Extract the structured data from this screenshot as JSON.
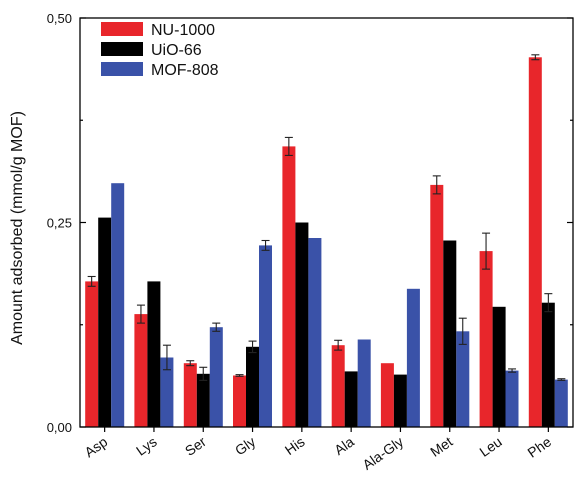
{
  "chart_data": {
    "type": "bar",
    "title": "",
    "xlabel": "",
    "ylabel": "Amount adsorbed (mmol/g MOF)",
    "ylim": [
      0,
      0.5
    ],
    "yticks": [
      0,
      0.25,
      0.5
    ],
    "ytick_labels": [
      "0,00",
      "0,25",
      "0,50"
    ],
    "legend_position": "top-left",
    "categories": [
      "Asp",
      "Lys",
      "Ser",
      "Gly",
      "His",
      "Ala",
      "Ala-Gly",
      "Met",
      "Leu",
      "Phe"
    ],
    "series": [
      {
        "name": "NU-1000",
        "color": "#e8262b",
        "values": [
          0.178,
          0.138,
          0.078,
          0.063,
          0.343,
          0.1,
          0.078,
          0.296,
          0.215,
          0.452
        ],
        "errors": [
          0.006,
          0.011,
          0.003,
          0.001,
          0.011,
          0.006,
          0.0,
          0.011,
          0.022,
          0.003
        ]
      },
      {
        "name": "UiO-66",
        "color": "#000000",
        "values": [
          0.256,
          0.178,
          0.065,
          0.098,
          0.25,
          0.068,
          0.064,
          0.228,
          0.147,
          0.152
        ],
        "errors": [
          0.0,
          0.0,
          0.008,
          0.007,
          0.0,
          0.0,
          0.0,
          0.0,
          0.0,
          0.011
        ]
      },
      {
        "name": "MOF-808",
        "color": "#3a52a8",
        "values": [
          0.298,
          0.085,
          0.122,
          0.222,
          0.231,
          0.107,
          0.169,
          0.117,
          0.069,
          0.058
        ],
        "errors": [
          0.0,
          0.015,
          0.005,
          0.006,
          0.0,
          0.0,
          0.0,
          0.016,
          0.002,
          0.001
        ]
      }
    ]
  }
}
